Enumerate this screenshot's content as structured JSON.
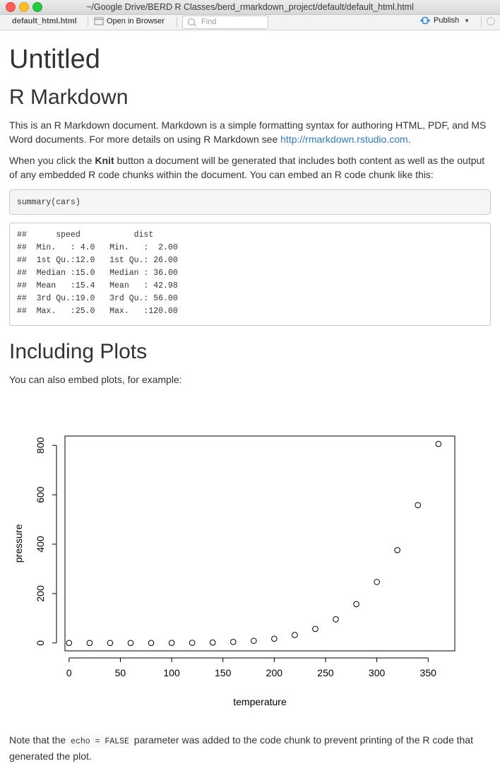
{
  "window": {
    "title": "~/Google Drive/BERD R Classes/berd_rmarkdown_project/default/default_html.html"
  },
  "toolbar": {
    "filename": "default_html.html",
    "open_in_browser": "Open in Browser",
    "find_placeholder": "Find",
    "publish_label": "Publish"
  },
  "document": {
    "title": "Untitled",
    "section1": {
      "heading": "R Markdown",
      "para1_a": "This is an R Markdown document. Markdown is a simple formatting syntax for authoring HTML, PDF, and MS Word documents. For more details on using R Markdown see ",
      "para1_link": "http://rmarkdown.rstudio.com",
      "para1_b": ".",
      "para2_a": "When you click the ",
      "para2_bold": "Knit",
      "para2_b": " button a document will be generated that includes both content as well as the output of any embedded R code chunks within the document. You can embed an R code chunk like this:",
      "code": "summary(cars)",
      "output_lines": [
        "##      speed           dist       ",
        "##  Min.   : 4.0   Min.   :  2.00  ",
        "##  1st Qu.:12.0   1st Qu.: 26.00  ",
        "##  Median :15.0   Median : 36.00  ",
        "##  Mean   :15.4   Mean   : 42.98  ",
        "##  3rd Qu.:19.0   3rd Qu.: 56.00  ",
        "##  Max.   :25.0   Max.   :120.00  "
      ]
    },
    "section2": {
      "heading": "Including Plots",
      "para": "You can also embed plots, for example:",
      "note_a": "Note that the ",
      "note_code": "echo = FALSE",
      "note_b": " parameter was added to the code chunk to prevent printing of the R code that generated the plot."
    }
  },
  "chart_data": {
    "type": "scatter",
    "xlabel": "temperature",
    "ylabel": "pressure",
    "xlim": [
      -4,
      376
    ],
    "ylim": [
      -32,
      838
    ],
    "x_ticks": [
      0,
      50,
      100,
      150,
      200,
      250,
      300,
      350
    ],
    "y_ticks": [
      0,
      200,
      400,
      600,
      800
    ],
    "x": [
      0,
      20,
      40,
      60,
      80,
      100,
      120,
      140,
      160,
      180,
      200,
      220,
      240,
      260,
      280,
      300,
      320,
      340,
      360
    ],
    "y": [
      0.0002,
      0.0012,
      0.006,
      0.03,
      0.09,
      0.27,
      0.75,
      1.85,
      4.2,
      8.8,
      17.3,
      32.1,
      57,
      96,
      157,
      247,
      376,
      558,
      806
    ]
  }
}
